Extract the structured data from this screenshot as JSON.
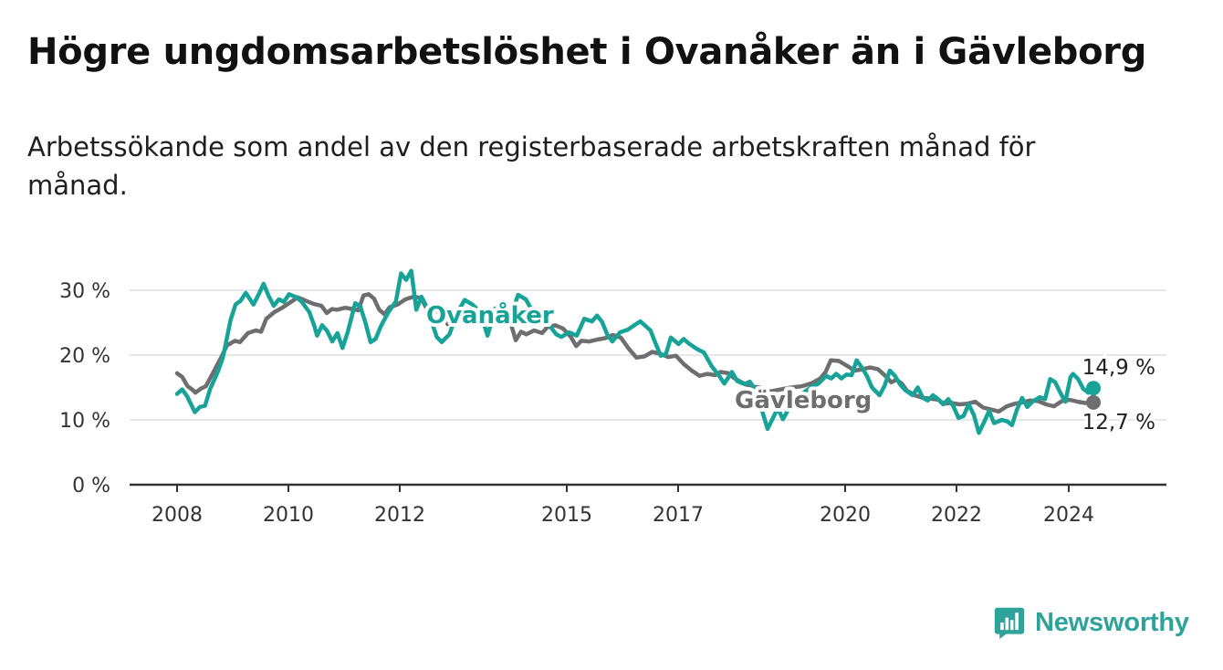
{
  "title": "Högre ungdomsarbetslöshet i Ovanåker än i Gävleborg",
  "subtitle": "Arbetssökande som andel av den registerbaserade arbetskraften månad för månad.",
  "brand": {
    "name": "Newsworthy",
    "icon": "bar-chart-logo-icon",
    "color": "#2da39a"
  },
  "chart_data": {
    "type": "line",
    "xlim": [
      2008.0,
      2025.7
    ],
    "ylim": [
      0,
      30
    ],
    "yticks": [
      0,
      10,
      20,
      30
    ],
    "ytick_labels": [
      "0 %",
      "10 %",
      "20 %",
      "30 %"
    ],
    "xticks": [
      2008,
      2010,
      2012,
      2015,
      2017,
      2020,
      2022,
      2024
    ],
    "xtick_labels": [
      "2008",
      "2010",
      "2012",
      "2015",
      "2017",
      "2020",
      "2022",
      "2024"
    ],
    "grid": true,
    "series": [
      {
        "name": "Gävleborg",
        "color": "#6e6e70",
        "end_label": "12,7 %",
        "label_position": "mid-bottom",
        "points": [
          [
            2008.0,
            17.2
          ],
          [
            2008.1,
            16.6
          ],
          [
            2008.2,
            15.2
          ],
          [
            2008.3,
            14.6
          ],
          [
            2008.35,
            14.2
          ],
          [
            2008.45,
            14.8
          ],
          [
            2008.55,
            15.2
          ],
          [
            2008.7,
            17.5
          ],
          [
            2008.85,
            19.8
          ],
          [
            2008.95,
            21.5
          ],
          [
            2009.1,
            22.2
          ],
          [
            2009.2,
            22.0
          ],
          [
            2009.35,
            23.4
          ],
          [
            2009.5,
            23.8
          ],
          [
            2009.6,
            23.6
          ],
          [
            2009.7,
            25.6
          ],
          [
            2009.85,
            26.6
          ],
          [
            2010.0,
            27.3
          ],
          [
            2010.15,
            28.1
          ],
          [
            2010.3,
            28.9
          ],
          [
            2010.45,
            28.4
          ],
          [
            2010.6,
            27.9
          ],
          [
            2010.75,
            27.6
          ],
          [
            2010.85,
            26.5
          ],
          [
            2010.95,
            27.1
          ],
          [
            2011.05,
            27.0
          ],
          [
            2011.2,
            27.3
          ],
          [
            2011.35,
            27.1
          ],
          [
            2011.45,
            26.9
          ],
          [
            2011.55,
            29.2
          ],
          [
            2011.65,
            29.4
          ],
          [
            2011.75,
            28.7
          ],
          [
            2011.85,
            27.0
          ],
          [
            2011.95,
            26.3
          ],
          [
            2012.05,
            27.4
          ],
          [
            2012.2,
            27.8
          ],
          [
            2012.35,
            28.6
          ],
          [
            2012.5,
            29.0
          ],
          [
            2012.65,
            28.8
          ],
          [
            2012.75,
            27.2
          ],
          [
            2012.85,
            27.6
          ],
          [
            2013.0,
            26.4
          ],
          [
            2013.15,
            24.8
          ],
          [
            2013.35,
            25.8
          ],
          [
            2013.6,
            26.2
          ],
          [
            2013.8,
            26.0
          ],
          [
            2014.0,
            26.5
          ],
          [
            2014.2,
            25.8
          ],
          [
            2014.35,
            25.0
          ],
          [
            2014.45,
            22.3
          ],
          [
            2014.55,
            23.6
          ],
          [
            2014.65,
            23.2
          ],
          [
            2014.8,
            23.8
          ],
          [
            2014.95,
            23.4
          ],
          [
            2015.05,
            24.3
          ],
          [
            2015.2,
            24.6
          ],
          [
            2015.35,
            24.1
          ],
          [
            2015.5,
            22.8
          ],
          [
            2015.6,
            21.4
          ],
          [
            2015.7,
            22.2
          ],
          [
            2015.85,
            22.1
          ],
          [
            2016.0,
            22.4
          ],
          [
            2016.15,
            22.6
          ],
          [
            2016.3,
            23.1
          ],
          [
            2016.45,
            22.7
          ],
          [
            2016.6,
            21.0
          ],
          [
            2016.75,
            19.6
          ],
          [
            2016.9,
            19.8
          ],
          [
            2017.05,
            20.5
          ],
          [
            2017.2,
            20.2
          ],
          [
            2017.35,
            19.7
          ],
          [
            2017.5,
            19.9
          ],
          [
            2017.65,
            18.6
          ],
          [
            2017.8,
            17.6
          ],
          [
            2017.95,
            16.8
          ],
          [
            2018.1,
            17.1
          ],
          [
            2018.25,
            16.9
          ],
          [
            2018.35,
            17.4
          ],
          [
            2018.5,
            17.2
          ],
          [
            2018.6,
            16.5
          ],
          [
            2018.75,
            15.8
          ],
          [
            2018.9,
            15.2
          ],
          [
            2019.1,
            15.0
          ],
          [
            2019.3,
            14.4
          ],
          [
            2019.5,
            14.7
          ],
          [
            2019.7,
            15.0
          ],
          [
            2019.9,
            15.2
          ],
          [
            2020.1,
            15.7
          ],
          [
            2020.25,
            16.4
          ],
          [
            2020.35,
            17.4
          ],
          [
            2020.45,
            19.2
          ],
          [
            2020.6,
            19.1
          ],
          [
            2020.75,
            18.4
          ],
          [
            2020.9,
            17.6
          ],
          [
            2021.05,
            17.8
          ],
          [
            2021.2,
            18.1
          ],
          [
            2021.35,
            17.8
          ],
          [
            2021.5,
            16.7
          ],
          [
            2021.6,
            15.8
          ],
          [
            2021.7,
            16.2
          ],
          [
            2021.8,
            15.6
          ],
          [
            2021.9,
            14.5
          ],
          [
            2022.05,
            13.8
          ],
          [
            2022.2,
            13.4
          ],
          [
            2022.35,
            13.3
          ],
          [
            2022.5,
            13.1
          ],
          [
            2022.6,
            12.5
          ],
          [
            2022.75,
            12.6
          ],
          [
            2022.9,
            12.4
          ],
          [
            2023.05,
            12.5
          ],
          [
            2023.2,
            12.8
          ],
          [
            2023.35,
            11.9
          ],
          [
            2023.5,
            11.6
          ],
          [
            2023.65,
            11.3
          ],
          [
            2023.8,
            12.1
          ],
          [
            2023.95,
            12.5
          ],
          [
            2024.1,
            12.7
          ],
          [
            2024.25,
            13.0
          ],
          [
            2024.4,
            12.9
          ],
          [
            2024.55,
            12.4
          ],
          [
            2024.7,
            12.1
          ],
          [
            2024.85,
            12.9
          ],
          [
            2025.0,
            13.1
          ],
          [
            2025.15,
            12.8
          ],
          [
            2025.3,
            12.6
          ],
          [
            2025.45,
            12.7
          ]
        ]
      },
      {
        "name": "Ovanåker",
        "color": "#17a398",
        "end_label": "14,9 %",
        "label_position": "upper-left",
        "points": [
          [
            2008.0,
            14.0
          ],
          [
            2008.1,
            14.7
          ],
          [
            2008.2,
            13.6
          ],
          [
            2008.25,
            12.8
          ],
          [
            2008.35,
            11.2
          ],
          [
            2008.45,
            12.0
          ],
          [
            2008.55,
            12.2
          ],
          [
            2008.65,
            14.8
          ],
          [
            2008.8,
            17.4
          ],
          [
            2008.9,
            19.6
          ],
          [
            2009.05,
            25.4
          ],
          [
            2009.15,
            27.8
          ],
          [
            2009.25,
            28.4
          ],
          [
            2009.35,
            29.6
          ],
          [
            2009.5,
            27.8
          ],
          [
            2009.6,
            29.3
          ],
          [
            2009.7,
            31.0
          ],
          [
            2009.8,
            29.1
          ],
          [
            2009.9,
            27.6
          ],
          [
            2010.0,
            28.6
          ],
          [
            2010.1,
            28.2
          ],
          [
            2010.2,
            29.4
          ],
          [
            2010.35,
            28.9
          ],
          [
            2010.45,
            28.2
          ],
          [
            2010.6,
            26.6
          ],
          [
            2010.7,
            24.4
          ],
          [
            2010.75,
            23.0
          ],
          [
            2010.85,
            24.6
          ],
          [
            2010.95,
            23.7
          ],
          [
            2011.05,
            22.1
          ],
          [
            2011.15,
            23.4
          ],
          [
            2011.25,
            21.1
          ],
          [
            2011.35,
            23.5
          ],
          [
            2011.5,
            28.0
          ],
          [
            2011.6,
            27.5
          ],
          [
            2011.7,
            25.0
          ],
          [
            2011.8,
            22.0
          ],
          [
            2011.9,
            22.5
          ],
          [
            2012.0,
            24.4
          ],
          [
            2012.15,
            26.6
          ],
          [
            2012.3,
            28.3
          ],
          [
            2012.4,
            32.6
          ],
          [
            2012.5,
            31.6
          ],
          [
            2012.6,
            33.0
          ],
          [
            2012.7,
            27.0
          ],
          [
            2012.8,
            29.0
          ],
          [
            2012.9,
            27.5
          ],
          [
            2013.0,
            25.2
          ],
          [
            2013.1,
            22.8
          ],
          [
            2013.2,
            22.0
          ],
          [
            2013.35,
            23.2
          ],
          [
            2013.5,
            26.5
          ],
          [
            2013.65,
            28.5
          ],
          [
            2013.8,
            27.8
          ],
          [
            2013.95,
            26.7
          ],
          [
            2014.1,
            23.0
          ],
          [
            2014.25,
            27.2
          ],
          [
            2014.4,
            26.0
          ],
          [
            2014.55,
            25.9
          ],
          [
            2014.7,
            29.3
          ],
          [
            2014.85,
            28.6
          ],
          [
            2014.95,
            27.2
          ],
          [
            2015.1,
            25.8
          ],
          [
            2015.2,
            26.2
          ],
          [
            2015.3,
            24.7
          ],
          [
            2015.45,
            23.2
          ],
          [
            2015.55,
            22.8
          ],
          [
            2015.7,
            23.5
          ],
          [
            2015.85,
            23.0
          ],
          [
            2016.0,
            25.6
          ],
          [
            2016.15,
            25.2
          ],
          [
            2016.25,
            26.1
          ],
          [
            2016.35,
            25.1
          ],
          [
            2016.45,
            23.2
          ],
          [
            2016.55,
            22.1
          ],
          [
            2016.7,
            23.5
          ],
          [
            2016.85,
            23.9
          ],
          [
            2017.0,
            24.7
          ],
          [
            2017.1,
            25.2
          ],
          [
            2017.2,
            24.5
          ],
          [
            2017.3,
            23.8
          ],
          [
            2017.4,
            21.8
          ],
          [
            2017.5,
            19.9
          ],
          [
            2017.6,
            20.1
          ],
          [
            2017.7,
            22.7
          ],
          [
            2017.85,
            21.7
          ],
          [
            2017.95,
            22.5
          ],
          [
            2018.05,
            21.8
          ],
          [
            2018.2,
            21.0
          ],
          [
            2018.35,
            20.4
          ],
          [
            2018.5,
            18.3
          ],
          [
            2018.65,
            16.8
          ],
          [
            2018.75,
            15.6
          ],
          [
            2018.9,
            17.4
          ],
          [
            2019.0,
            16.0
          ],
          [
            2019.15,
            15.5
          ],
          [
            2019.25,
            15.9
          ],
          [
            2019.4,
            14.2
          ],
          [
            2019.5,
            11.2
          ],
          [
            2019.6,
            8.6
          ],
          [
            2019.7,
            10.2
          ],
          [
            2019.8,
            11.8
          ],
          [
            2019.9,
            10.1
          ],
          [
            2020.0,
            11.5
          ],
          [
            2020.15,
            13.4
          ],
          [
            2020.3,
            14.2
          ],
          [
            2020.45,
            15.0
          ],
          [
            2020.6,
            15.6
          ],
          [
            2020.75,
            16.8
          ],
          [
            2020.85,
            16.4
          ],
          [
            2020.95,
            17.1
          ],
          [
            2021.05,
            16.4
          ],
          [
            2021.15,
            17.0
          ],
          [
            2021.25,
            16.9
          ],
          [
            2021.35,
            19.2
          ],
          [
            2021.45,
            18.1
          ],
          [
            2021.55,
            16.8
          ],
          [
            2021.65,
            15.0
          ],
          [
            2021.8,
            13.8
          ],
          [
            2021.9,
            15.3
          ],
          [
            2022.0,
            17.6
          ],
          [
            2022.1,
            16.8
          ],
          [
            2022.2,
            15.5
          ],
          [
            2022.3,
            14.6
          ],
          [
            2022.45,
            13.8
          ],
          [
            2022.55,
            15.0
          ],
          [
            2022.65,
            13.4
          ],
          [
            2022.75,
            13.0
          ],
          [
            2022.85,
            13.8
          ],
          [
            2022.95,
            13.2
          ],
          [
            2023.05,
            12.4
          ],
          [
            2023.15,
            13.2
          ],
          [
            2023.25,
            12.1
          ],
          [
            2023.35,
            10.3
          ],
          [
            2023.45,
            10.6
          ],
          [
            2023.55,
            12.4
          ],
          [
            2023.65,
            10.8
          ],
          [
            2023.75,
            8.0
          ],
          [
            2023.85,
            9.6
          ],
          [
            2023.95,
            11.4
          ],
          [
            2024.05,
            9.5
          ],
          [
            2024.2,
            10.0
          ],
          [
            2024.3,
            9.8
          ],
          [
            2024.4,
            9.2
          ],
          [
            2024.5,
            11.6
          ],
          [
            2024.6,
            13.4
          ],
          [
            2024.7,
            12.0
          ],
          [
            2024.8,
            12.8
          ],
          [
            2024.95,
            13.5
          ],
          [
            2025.05,
            13.2
          ],
          [
            2025.15,
            16.3
          ],
          [
            2025.25,
            15.8
          ],
          [
            2025.35,
            14.2
          ],
          [
            2025.45,
            12.8
          ],
          [
            2025.55,
            16.6
          ],
          [
            2025.6,
            17.1
          ],
          [
            2025.7,
            16.3
          ],
          [
            2025.8,
            14.8
          ],
          [
            2025.9,
            14.2
          ],
          [
            2026.0,
            14.9
          ]
        ]
      }
    ]
  }
}
